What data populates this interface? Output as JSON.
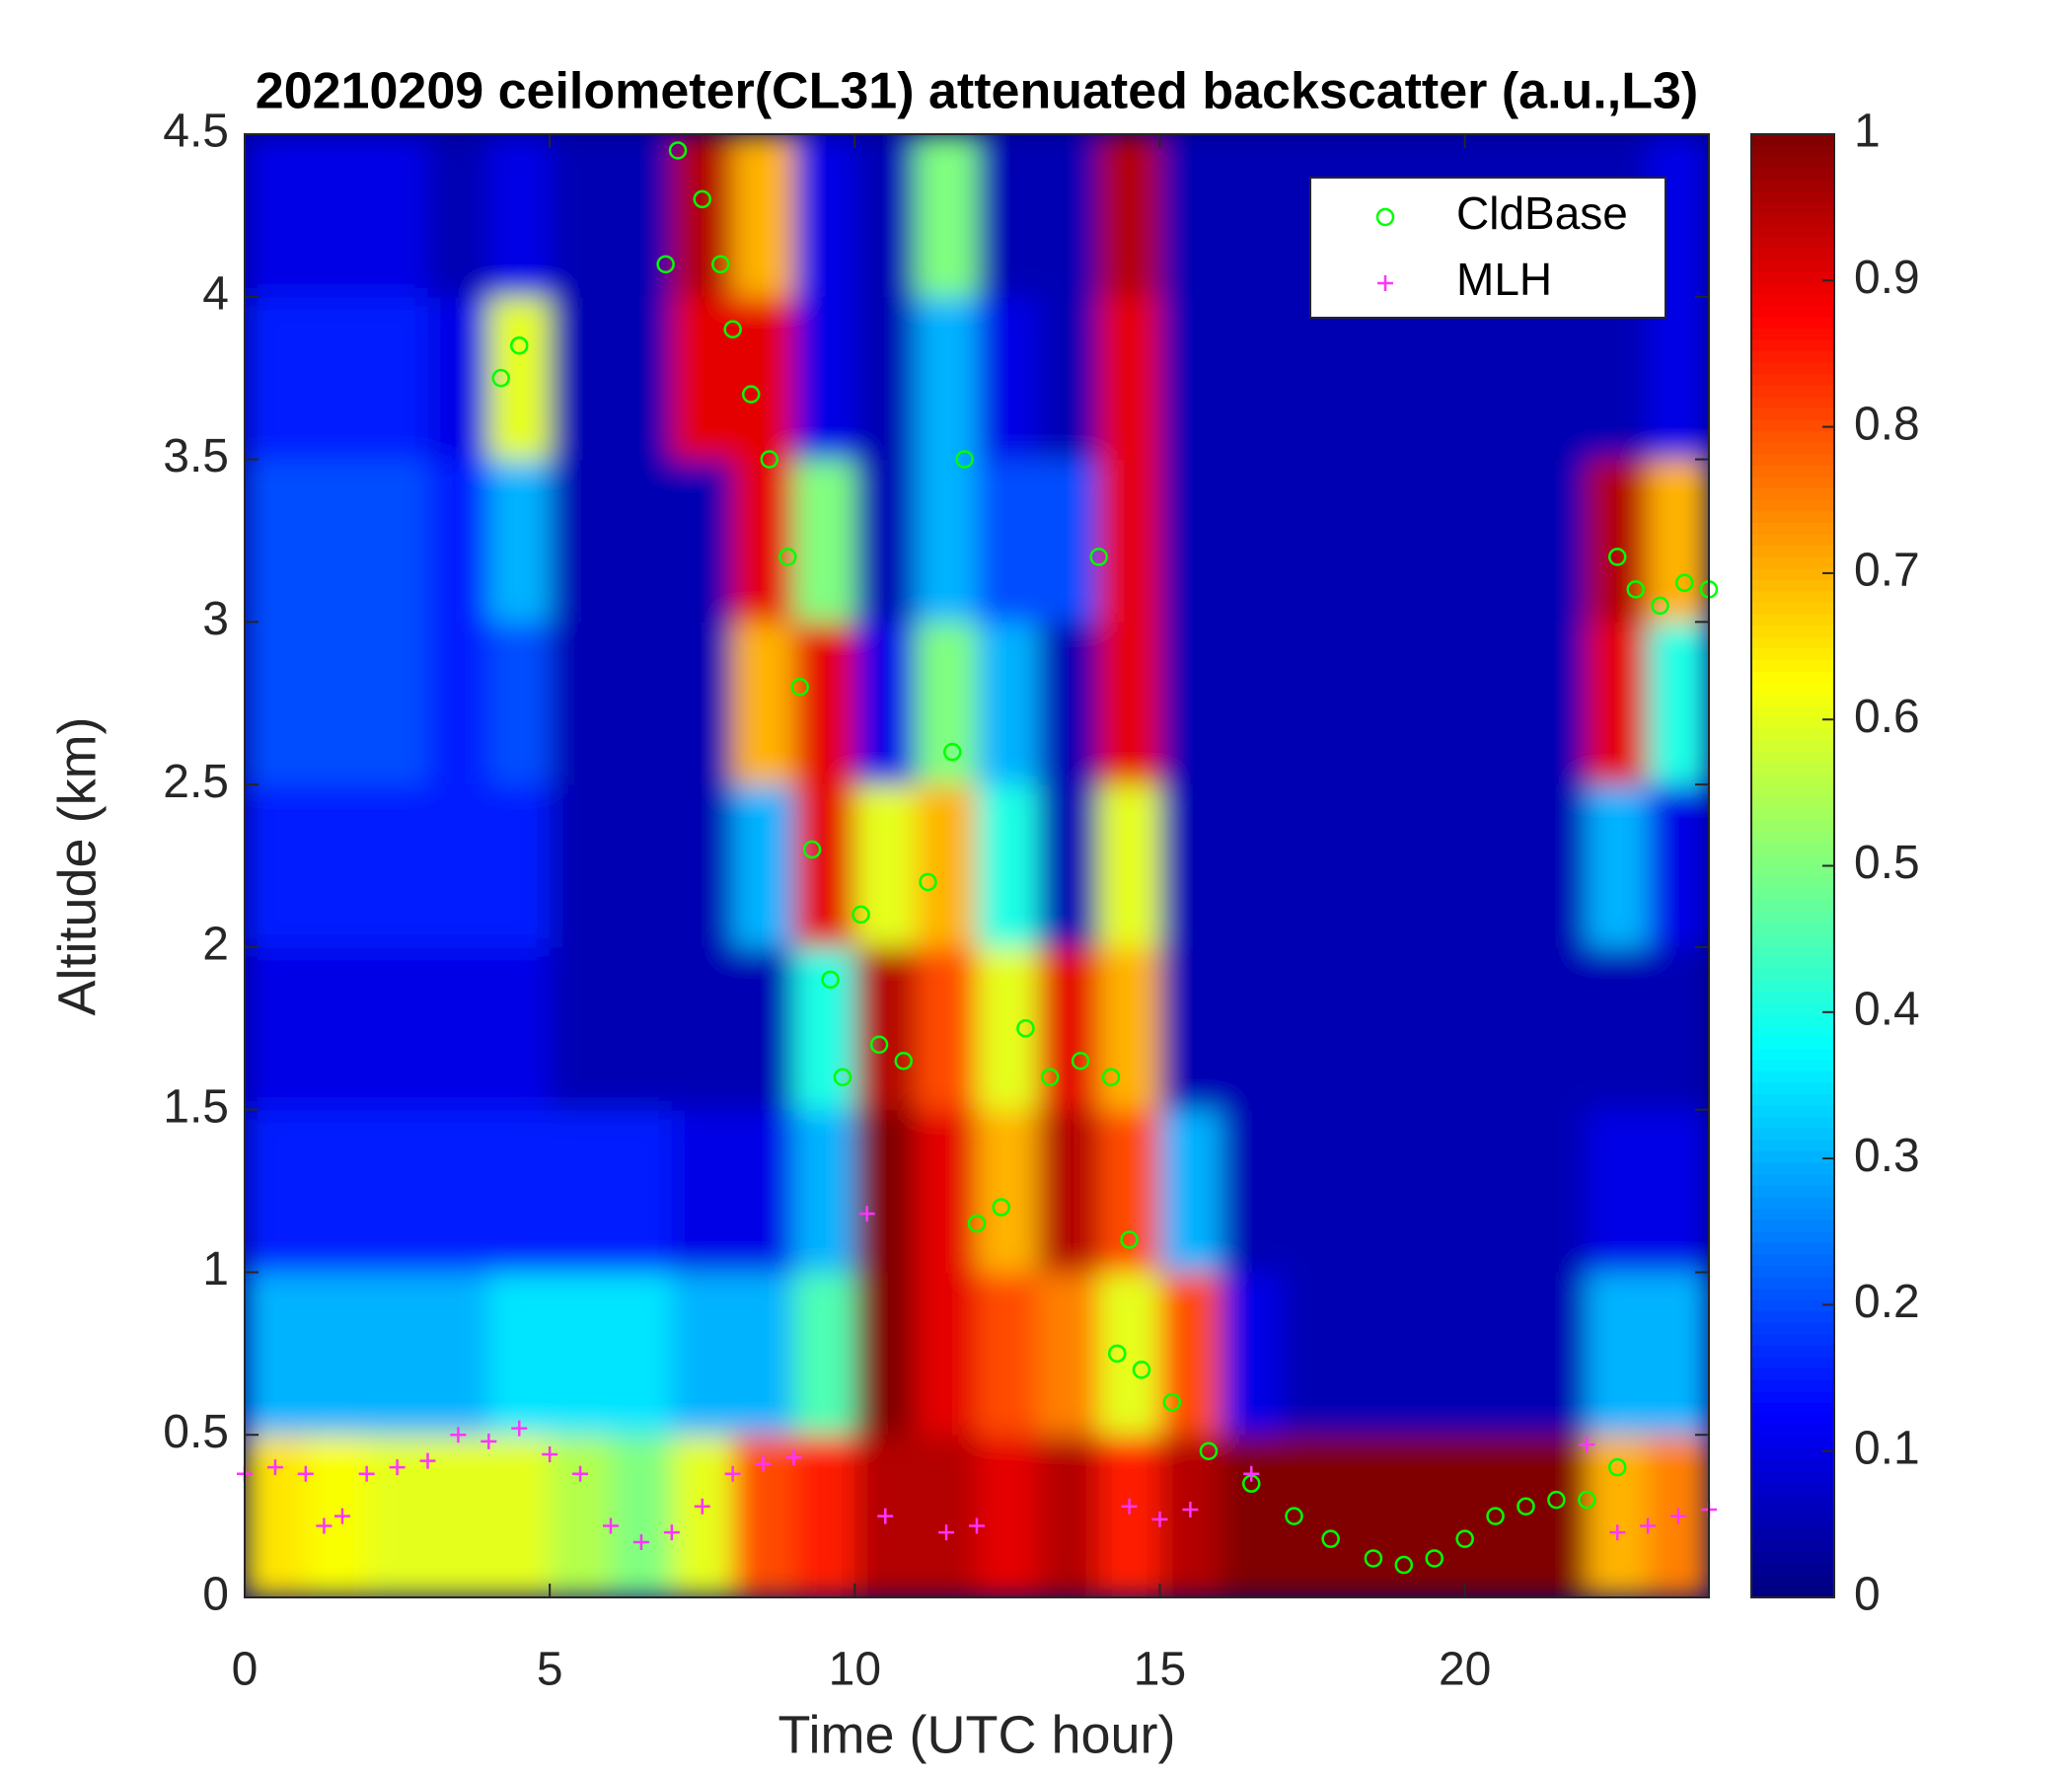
{
  "chart_data": {
    "type": "heatmap",
    "title": "20210209 ceilometer(CL31) attenuated backscatter (a.u.,L3)",
    "xlabel": "Time (UTC hour)",
    "ylabel": "Altitude (km)",
    "xlim": [
      0,
      24
    ],
    "ylim": [
      0,
      4.5
    ],
    "xticks": [
      0,
      5,
      10,
      15,
      20
    ],
    "yticks": [
      0,
      0.5,
      1,
      1.5,
      2,
      2.5,
      3,
      3.5,
      4,
      4.5
    ],
    "clim": [
      0,
      1
    ],
    "cticks": [
      0,
      0.1,
      0.2,
      0.3,
      0.4,
      0.5,
      0.6,
      0.7,
      0.8,
      0.9,
      1
    ],
    "colormap": "jet",
    "legend": "northeast",
    "xbins": [
      0,
      1,
      2,
      3,
      4,
      5,
      6,
      7,
      8,
      9,
      10,
      11,
      12,
      13,
      14,
      15,
      16,
      17,
      18,
      19,
      20,
      21,
      22,
      23,
      24
    ],
    "ybins": [
      0,
      0.5,
      1,
      1.5,
      2,
      2.5,
      3,
      3.5,
      4,
      4.5
    ],
    "z": [
      [
        0.65,
        0.62,
        0.6,
        0.6,
        0.6,
        0.55,
        0.5,
        0.6,
        0.8,
        0.85,
        0.95,
        0.95,
        0.9,
        0.95,
        0.85,
        0.95,
        1,
        1,
        1,
        1,
        1,
        1,
        0.7,
        0.75
      ],
      [
        0.3,
        0.3,
        0.3,
        0.3,
        0.35,
        0.35,
        0.35,
        0.3,
        0.3,
        0.45,
        1,
        0.9,
        0.8,
        0.75,
        0.6,
        0.8,
        0.1,
        0.05,
        0.05,
        0.05,
        0.05,
        0.05,
        0.3,
        0.3
      ],
      [
        0.15,
        0.15,
        0.15,
        0.15,
        0.15,
        0.15,
        0.15,
        0.1,
        0.1,
        0.3,
        1,
        0.9,
        0.7,
        0.95,
        0.8,
        0.3,
        0.05,
        0.05,
        0.05,
        0.05,
        0.05,
        0.05,
        0.1,
        0.1
      ],
      [
        0.1,
        0.1,
        0.1,
        0.1,
        0.1,
        0.05,
        0.05,
        0.05,
        0.05,
        0.4,
        0.95,
        0.8,
        0.6,
        0.9,
        0.7,
        0.05,
        0.05,
        0.05,
        0.05,
        0.05,
        0.05,
        0.05,
        0.05,
        0.05
      ],
      [
        0.15,
        0.15,
        0.15,
        0.15,
        0.15,
        0.05,
        0.05,
        0.05,
        0.3,
        0.9,
        0.6,
        0.7,
        0.4,
        0.05,
        0.6,
        0.05,
        0.05,
        0.05,
        0.05,
        0.05,
        0.05,
        0.05,
        0.3,
        0.1
      ],
      [
        0.2,
        0.2,
        0.2,
        0.15,
        0.2,
        0.05,
        0.05,
        0.05,
        0.7,
        0.9,
        0.1,
        0.5,
        0.3,
        0.05,
        0.9,
        0.05,
        0.05,
        0.05,
        0.05,
        0.05,
        0.05,
        0.05,
        0.9,
        0.4
      ],
      [
        0.2,
        0.2,
        0.2,
        0.15,
        0.3,
        0.05,
        0.05,
        0.05,
        0.9,
        0.5,
        0.05,
        0.3,
        0.2,
        0.2,
        0.9,
        0.05,
        0.05,
        0.05,
        0.05,
        0.05,
        0.05,
        0.05,
        0.95,
        0.7
      ],
      [
        0.15,
        0.15,
        0.15,
        0.1,
        0.6,
        0.05,
        0.05,
        0.9,
        0.9,
        0.1,
        0.05,
        0.3,
        0.1,
        0.05,
        0.9,
        0.05,
        0.05,
        0.05,
        0.05,
        0.05,
        0.05,
        0.05,
        0.05,
        0.1
      ],
      [
        0.1,
        0.1,
        0.1,
        0.05,
        0.1,
        0.05,
        0.05,
        0.95,
        0.7,
        0.1,
        0.05,
        0.5,
        0.05,
        0.05,
        0.95,
        0.05,
        0.05,
        0.05,
        0.05,
        0.05,
        0.05,
        0.05,
        0.05,
        0.1
      ]
    ],
    "series": [
      {
        "name": "CldBase",
        "color": "#00ff00",
        "marker": "o",
        "x": [
          4.2,
          4.5,
          6.9,
          7.1,
          7.5,
          7.8,
          8.0,
          8.3,
          8.6,
          8.9,
          9.1,
          9.3,
          9.6,
          9.8,
          10.1,
          10.4,
          10.8,
          11.2,
          11.6,
          11.8,
          12.0,
          12.4,
          12.8,
          13.2,
          13.7,
          14.0,
          14.2,
          14.3,
          14.5,
          14.7,
          15.2,
          15.8,
          16.5,
          17.2,
          17.8,
          18.5,
          19.0,
          19.5,
          20.0,
          20.5,
          21.0,
          21.5,
          22.0,
          22.5,
          22.5,
          22.8,
          23.2,
          23.6,
          24.0
        ],
        "y": [
          3.75,
          3.85,
          4.1,
          4.45,
          4.3,
          4.1,
          3.9,
          3.7,
          3.5,
          3.2,
          2.8,
          2.3,
          1.9,
          1.6,
          2.1,
          1.7,
          1.65,
          2.2,
          2.6,
          3.5,
          1.15,
          1.2,
          1.75,
          1.6,
          1.65,
          3.2,
          1.6,
          0.75,
          1.1,
          0.7,
          0.6,
          0.45,
          0.35,
          0.25,
          0.18,
          0.12,
          0.1,
          0.12,
          0.18,
          0.25,
          0.28,
          0.3,
          0.3,
          0.4,
          3.2,
          3.1,
          3.05,
          3.12,
          3.1
        ]
      },
      {
        "name": "MLH",
        "color": "#ff33ff",
        "marker": "+",
        "x": [
          0,
          0.5,
          1.0,
          1.3,
          1.6,
          2.0,
          2.5,
          3.0,
          3.5,
          4.0,
          4.5,
          5.0,
          5.5,
          6.0,
          6.5,
          7.0,
          7.5,
          8.0,
          8.5,
          9.0,
          10.2,
          10.5,
          11.5,
          12.0,
          14.5,
          15.0,
          15.5,
          16.5,
          22.0,
          22.5,
          23.0,
          23.5,
          24.0
        ],
        "y": [
          0.38,
          0.4,
          0.38,
          0.22,
          0.25,
          0.38,
          0.4,
          0.42,
          0.5,
          0.48,
          0.52,
          0.44,
          0.38,
          0.22,
          0.17,
          0.2,
          0.28,
          0.38,
          0.41,
          0.43,
          1.18,
          0.25,
          0.2,
          0.22,
          0.28,
          0.24,
          0.27,
          0.38,
          0.47,
          0.2,
          0.22,
          0.25,
          0.27
        ]
      }
    ]
  }
}
